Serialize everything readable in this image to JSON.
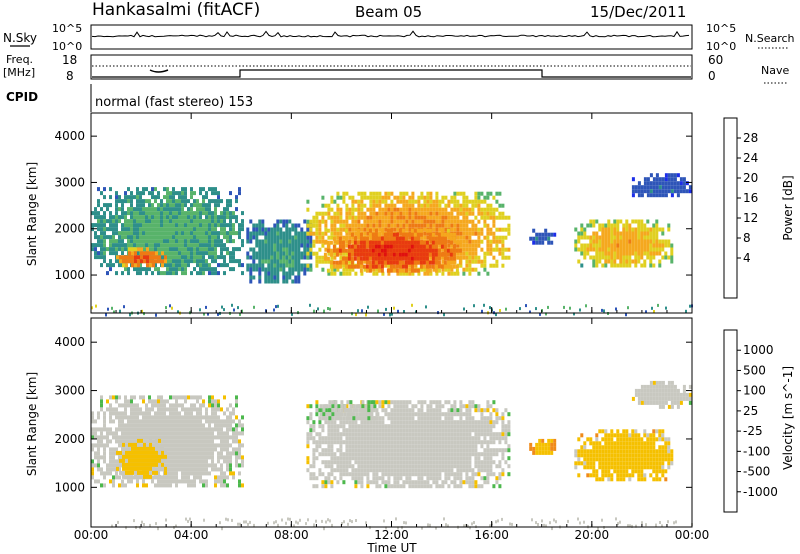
{
  "header": {
    "station": "Hankasalmi (fitACF)",
    "beam": "Beam 05",
    "date": "15/Dec/2011"
  },
  "top_panels": {
    "nsky_label": "N.Sky",
    "nsearch_label": "N.Search",
    "noise_ticks_left": [
      "10^5",
      "10^0"
    ],
    "noise_ticks_right": [
      "10^5",
      "10^0"
    ],
    "freq_label_1": "Freq.",
    "freq_label_2": "[MHz]",
    "freq_ticks": [
      "18",
      "8"
    ],
    "nave_label": "Nave",
    "nave_ticks": [
      "60",
      "0"
    ],
    "cpid_label": "CPID",
    "cpid_text": "normal (fast stereo) 153"
  },
  "chart_data": [
    {
      "type": "heatmap",
      "title": "",
      "ylabel": "Slant Range [km]",
      "xlabel": "",
      "x_range_hours": [
        0,
        24
      ],
      "y_range_km": [
        180,
        4500
      ],
      "y_ticks": [
        1000,
        2000,
        3000,
        4000
      ],
      "colorbar": {
        "label": "Power [dB]",
        "ticks": [
          "28",
          "24",
          "20",
          "16",
          "12",
          "8",
          "4"
        ],
        "colors": [
          "#1c2ee8",
          "#2e55b8",
          "#2e8f8a",
          "#58b36a",
          "#e0d020",
          "#f5a81e",
          "#ee7a14",
          "#e83a10",
          "#e01010"
        ],
        "range": [
          0,
          32
        ]
      },
      "echo_regions": [
        {
          "t": [
            0.0,
            6.0
          ],
          "r": [
            1000,
            2900
          ],
          "level": 12
        },
        {
          "t": [
            1.0,
            3.0
          ],
          "r": [
            1200,
            1600
          ],
          "level": 26
        },
        {
          "t": [
            6.2,
            8.8
          ],
          "r": [
            900,
            2200
          ],
          "level": 10
        },
        {
          "t": [
            8.6,
            16.7
          ],
          "r": [
            1000,
            2800
          ],
          "level": 22
        },
        {
          "t": [
            9.3,
            14.8
          ],
          "r": [
            1100,
            2000
          ],
          "level": 28
        },
        {
          "t": [
            17.5,
            18.5
          ],
          "r": [
            1700,
            2000
          ],
          "level": 6
        },
        {
          "t": [
            19.3,
            23.2
          ],
          "r": [
            1200,
            2200
          ],
          "level": 20
        },
        {
          "t": [
            21.6,
            23.9
          ],
          "r": [
            2700,
            3200
          ],
          "level": 6
        }
      ]
    },
    {
      "type": "heatmap",
      "title": "",
      "ylabel": "Slant Range [km]",
      "xlabel": "Time UT",
      "x_range_hours": [
        0,
        24
      ],
      "y_range_km": [
        180,
        4500
      ],
      "y_ticks": [
        1000,
        2000,
        3000,
        4000
      ],
      "x_tick_labels": [
        "00:00",
        "04:00",
        "08:00",
        "12:00",
        "16:00",
        "20:00",
        "00:00"
      ],
      "colorbar": {
        "label": "Velocity [m s^-1]",
        "ticks": [
          "1000",
          "500",
          "100",
          "25",
          "-25",
          "-100",
          "-500",
          "-1000"
        ],
        "colors": [
          "#1c2ee8",
          "#2e55b8",
          "#2e8f8a",
          "#4cb84c",
          "#c8c8c0",
          "#f5c000",
          "#f08a1a",
          "#e84a14",
          "#e01010"
        ],
        "range": [
          -1000,
          1000
        ]
      },
      "echo_regions": [
        {
          "t": [
            0.0,
            6.0
          ],
          "r": [
            1000,
            2900
          ],
          "level": 0
        },
        {
          "t": [
            1.0,
            3.0
          ],
          "r": [
            1200,
            2000
          ],
          "level": -150
        },
        {
          "t": [
            8.6,
            16.7
          ],
          "r": [
            1000,
            2800
          ],
          "level": 0
        },
        {
          "t": [
            9.0,
            11.5
          ],
          "r": [
            2400,
            2800
          ],
          "level": 80
        },
        {
          "t": [
            17.5,
            18.5
          ],
          "r": [
            1700,
            2000
          ],
          "level": -300
        },
        {
          "t": [
            19.3,
            23.2
          ],
          "r": [
            1200,
            2200
          ],
          "level": -200
        },
        {
          "t": [
            21.6,
            23.9
          ],
          "r": [
            2700,
            3200
          ],
          "level": 0
        }
      ]
    }
  ]
}
